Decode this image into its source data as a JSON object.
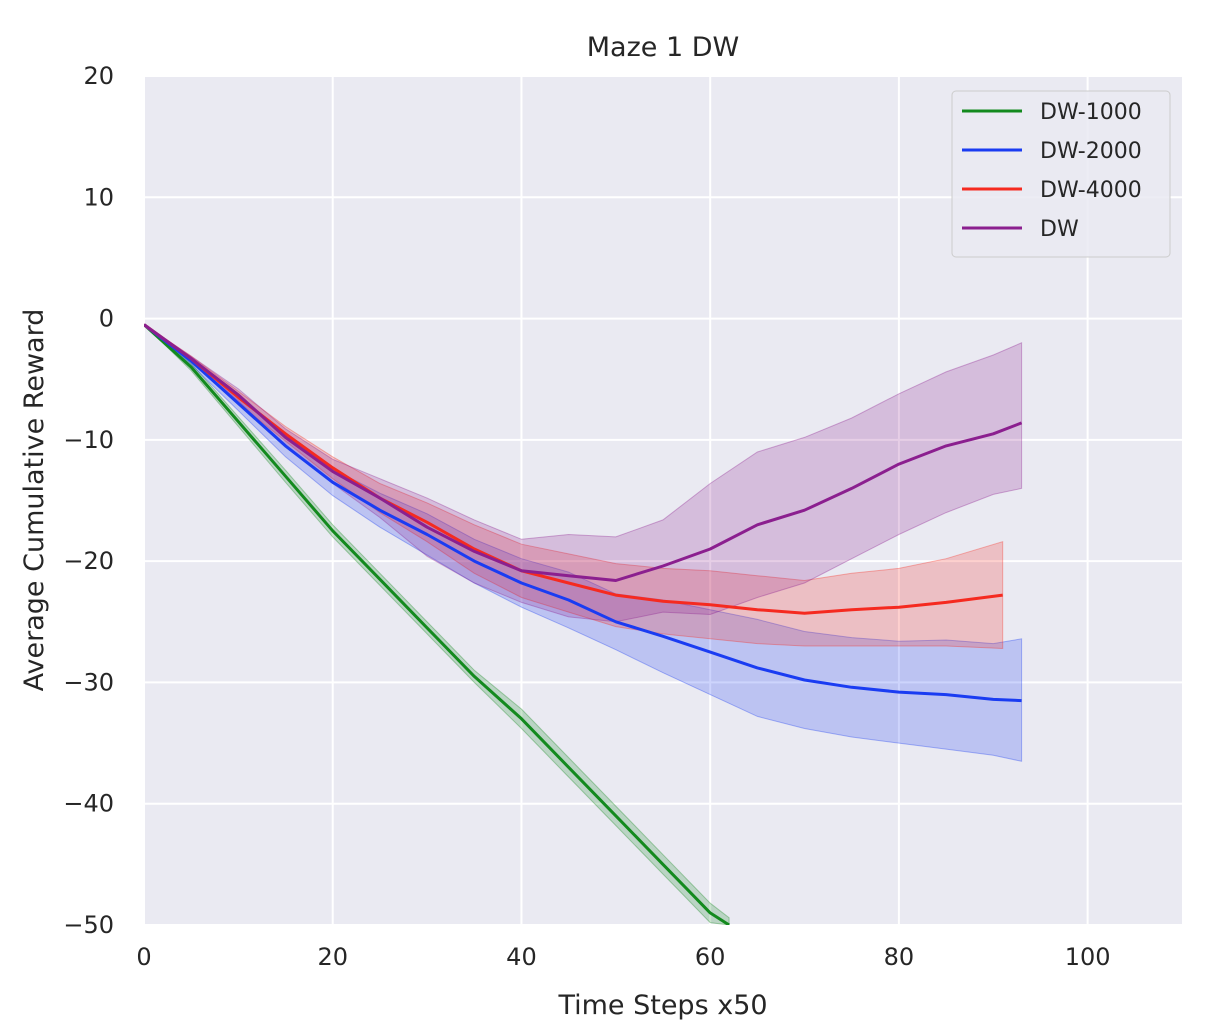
{
  "chart_data": {
    "type": "line",
    "title": "Maze 1 DW",
    "xlabel": "Time Steps x50",
    "ylabel": "Average Cumulative Reward",
    "xlim": [
      0,
      110
    ],
    "ylim": [
      -50,
      20
    ],
    "xticks": [
      "0",
      "20",
      "40",
      "60",
      "80",
      "100"
    ],
    "yticks": [
      "20",
      "10",
      "0",
      "−10",
      "−20",
      "−30",
      "−40",
      "−50"
    ],
    "grid": true,
    "legend_position": "top-right",
    "series": [
      {
        "name": "DW-1000",
        "color": "#138a1e",
        "x": [
          0,
          5,
          10,
          15,
          20,
          25,
          30,
          35,
          40,
          45,
          50,
          55,
          60,
          62
        ],
        "y": [
          -0.5,
          -4.0,
          -8.5,
          -13.0,
          -17.5,
          -21.5,
          -25.5,
          -29.5,
          -33.0,
          -37.0,
          -41.0,
          -45.0,
          -49.0,
          -50.0
        ],
        "lower": [
          -0.5,
          -4.3,
          -8.9,
          -13.5,
          -18.0,
          -22.0,
          -26.0,
          -30.0,
          -33.8,
          -37.8,
          -41.8,
          -45.8,
          -49.8,
          -50.0
        ],
        "upper": [
          -0.5,
          -3.7,
          -8.1,
          -12.5,
          -17.0,
          -21.0,
          -25.0,
          -29.0,
          -32.2,
          -36.2,
          -40.2,
          -44.2,
          -48.2,
          -49.4
        ]
      },
      {
        "name": "DW-2000",
        "color": "#1a3cf2",
        "x": [
          0,
          5,
          10,
          15,
          20,
          25,
          30,
          35,
          40,
          45,
          50,
          55,
          60,
          65,
          70,
          75,
          80,
          85,
          90,
          93
        ],
        "y": [
          -0.5,
          -3.5,
          -7.0,
          -10.5,
          -13.5,
          -15.8,
          -17.8,
          -20.0,
          -21.8,
          -23.2,
          -25.0,
          -26.2,
          -27.5,
          -28.8,
          -29.8,
          -30.4,
          -30.8,
          -31.0,
          -31.4,
          -31.5
        ],
        "lower": [
          -0.5,
          -3.8,
          -7.6,
          -11.4,
          -14.6,
          -17.2,
          -19.5,
          -21.8,
          -23.8,
          -25.5,
          -27.3,
          -29.2,
          -31.0,
          -32.8,
          -33.8,
          -34.5,
          -35.0,
          -35.5,
          -36.0,
          -36.5
        ],
        "upper": [
          -0.5,
          -3.2,
          -6.4,
          -9.6,
          -12.4,
          -14.4,
          -16.1,
          -18.2,
          -19.8,
          -20.9,
          -22.7,
          -23.2,
          -24.0,
          -24.8,
          -25.8,
          -26.3,
          -26.6,
          -26.5,
          -26.8,
          -26.4
        ]
      },
      {
        "name": "DW-4000",
        "color": "#f52a20",
        "x": [
          0,
          5,
          10,
          15,
          20,
          25,
          30,
          35,
          40,
          45,
          50,
          55,
          60,
          65,
          70,
          75,
          80,
          85,
          91
        ],
        "y": [
          -0.5,
          -3.3,
          -6.5,
          -9.5,
          -12.3,
          -14.8,
          -16.8,
          -19.0,
          -20.8,
          -21.8,
          -22.8,
          -23.3,
          -23.6,
          -24.0,
          -24.3,
          -24.0,
          -23.8,
          -23.4,
          -22.8
        ],
        "lower": [
          -0.5,
          -3.5,
          -7.0,
          -10.1,
          -13.2,
          -16.0,
          -18.4,
          -21.0,
          -23.0,
          -24.2,
          -25.4,
          -26.0,
          -26.4,
          -26.8,
          -27.0,
          -27.0,
          -27.0,
          -27.0,
          -27.2
        ],
        "upper": [
          -0.5,
          -3.1,
          -6.0,
          -8.9,
          -11.4,
          -13.6,
          -15.2,
          -17.0,
          -18.6,
          -19.4,
          -20.2,
          -20.6,
          -20.8,
          -21.2,
          -21.6,
          -21.0,
          -20.6,
          -19.8,
          -18.4
        ]
      },
      {
        "name": "DW",
        "color": "#8b1f8f",
        "x": [
          0,
          5,
          10,
          15,
          20,
          25,
          30,
          35,
          40,
          45,
          50,
          55,
          60,
          65,
          70,
          75,
          80,
          85,
          90,
          93
        ],
        "y": [
          -0.5,
          -3.3,
          -6.3,
          -9.8,
          -12.6,
          -14.8,
          -17.2,
          -19.2,
          -20.8,
          -21.2,
          -21.6,
          -20.4,
          -19.0,
          -17.0,
          -15.8,
          -14.0,
          -12.0,
          -10.5,
          -9.5,
          -8.6
        ],
        "lower": [
          -0.5,
          -3.5,
          -6.8,
          -10.5,
          -13.6,
          -16.4,
          -19.6,
          -21.8,
          -23.4,
          -24.6,
          -25.0,
          -24.2,
          -24.4,
          -23.0,
          -21.8,
          -19.8,
          -17.8,
          -16.0,
          -14.5,
          -14.0
        ],
        "upper": [
          -0.5,
          -3.1,
          -5.8,
          -9.1,
          -11.6,
          -13.2,
          -14.8,
          -16.6,
          -18.2,
          -17.8,
          -18.0,
          -16.6,
          -13.6,
          -11.0,
          -9.8,
          -8.2,
          -6.2,
          -4.4,
          -3.0,
          -2.0
        ]
      }
    ]
  }
}
